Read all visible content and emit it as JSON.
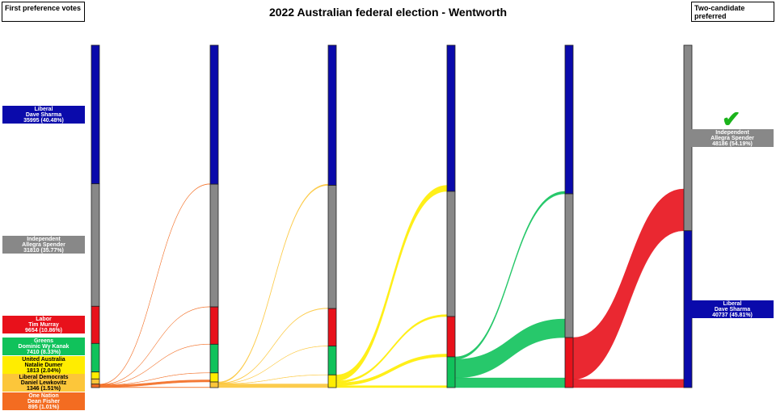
{
  "title": "2022 Australian federal election - Wentworth",
  "left_header": "First preference votes",
  "right_header": "Two-candidate preferred",
  "candidates": [
    {
      "key": "lib",
      "party": "Liberal",
      "name": "Dave Sharma",
      "color": "#0a0aab",
      "dark_text": false
    },
    {
      "key": "ind",
      "party": "Independent",
      "name": "Allegra Spender",
      "color": "#888888",
      "dark_text": false
    },
    {
      "key": "lab",
      "party": "Labor",
      "name": "Tim Murray",
      "color": "#e8111b",
      "dark_text": false
    },
    {
      "key": "grn",
      "party": "Greens",
      "name": "Dominic Wy Kanak",
      "color": "#10c25b",
      "dark_text": false
    },
    {
      "key": "uap",
      "party": "United Australia",
      "name": "Natalie Dumer",
      "color": "#ffed00",
      "dark_text": true
    },
    {
      "key": "ldp",
      "party": "Liberal Democrats",
      "name": "Daniel Lewkovitz",
      "color": "#fcc63a",
      "dark_text": true
    },
    {
      "key": "on",
      "party": "One Nation",
      "name": "Dean Fisher",
      "color": "#f36c21",
      "dark_text": false
    }
  ],
  "first_preferences": [
    {
      "label": "35995 (40.48%)"
    },
    {
      "label": "31810 (35.77%)"
    },
    {
      "label": "9654 (10.86%)"
    },
    {
      "label": "7410 (8.33%)"
    },
    {
      "label": "1813 (2.04%)"
    },
    {
      "label": "1346 (1.51%)"
    },
    {
      "label": "895 (1.01%)"
    }
  ],
  "two_candidate_preferred": [
    {
      "party": "Independent",
      "name": "Allegra Spender",
      "label": "48186 (54.19%)",
      "winner": true,
      "icon": "checkmark-icon"
    },
    {
      "party": "Liberal",
      "name": "Dave Sharma",
      "label": "40737 (45.81%)",
      "winner": false
    }
  ],
  "counts": [
    {
      "lib": 35995,
      "ind": 31810,
      "lab": 9654,
      "grn": 7410,
      "uap": 1813,
      "ldp": 1346,
      "on": 895
    },
    {
      "lib": 36100,
      "ind": 31870,
      "lab": 9700,
      "grn": 7440,
      "uap": 2350,
      "ldp": 1463
    },
    {
      "lib": 36400,
      "ind": 32000,
      "lab": 9750,
      "grn": 7480,
      "uap": 3293
    },
    {
      "lib": 37960,
      "ind": 32500,
      "lab": 10480,
      "grn": 7983
    },
    {
      "lib": 38600,
      "ind": 37330,
      "lab": 12993
    },
    {
      "ind": 48186,
      "lib": 40737
    }
  ],
  "stack_order_final": [
    "ind",
    "lib"
  ]
}
